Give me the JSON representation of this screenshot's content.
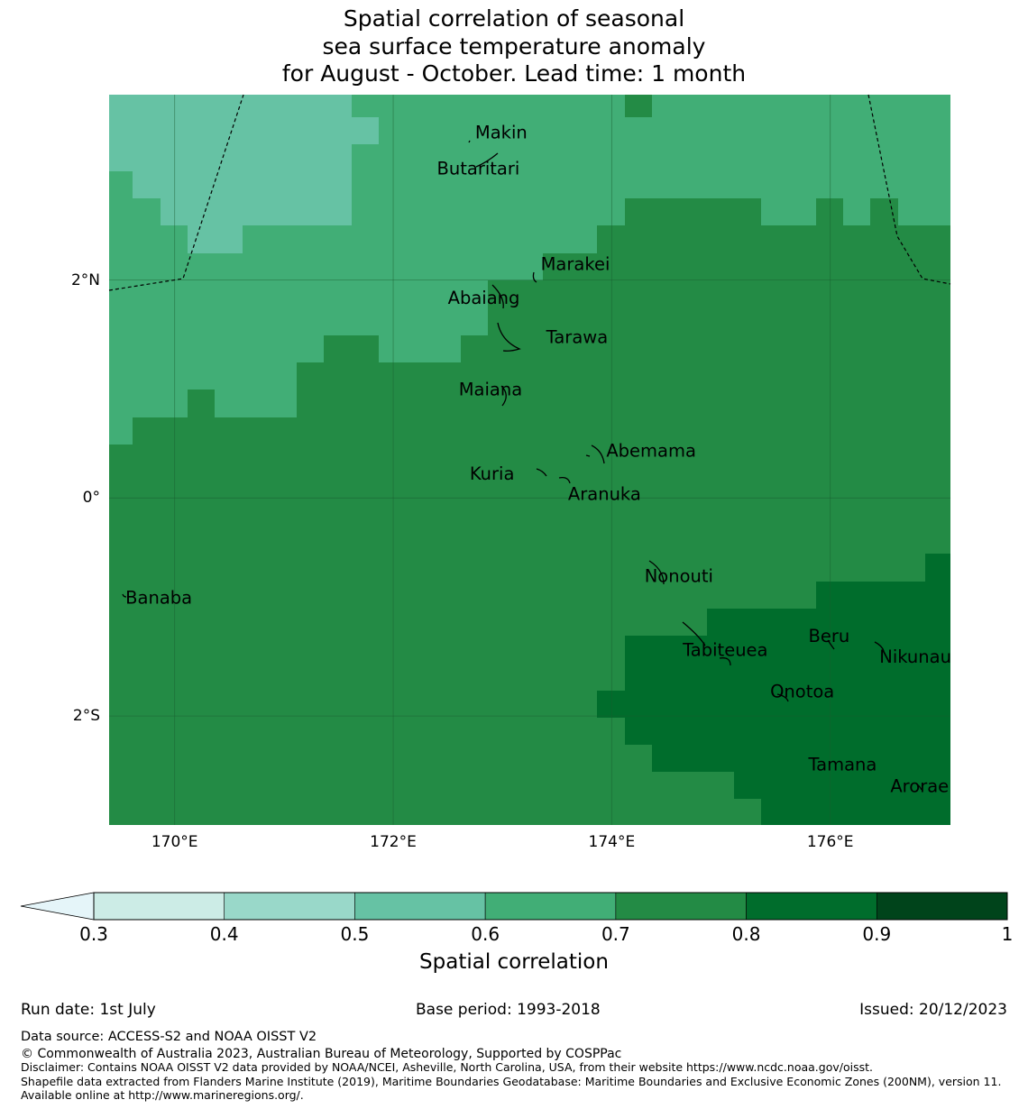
{
  "title_lines": [
    "Spatial correlation of seasonal",
    "sea surface temperature anomaly",
    "for August - October. Lead time: 1 month"
  ],
  "map": {
    "lon_range": [
      169.4,
      177.1
    ],
    "lat_range": [
      -3.0,
      3.7
    ],
    "x_ticks": [
      {
        "value": 170,
        "label": "170°E"
      },
      {
        "value": 172,
        "label": "172°E"
      },
      {
        "value": 174,
        "label": "174°E"
      },
      {
        "value": 176,
        "label": "176°E"
      }
    ],
    "y_ticks": [
      {
        "value": 2,
        "label": "2°N"
      },
      {
        "value": 0,
        "label": "0°"
      },
      {
        "value": -2,
        "label": "2°S"
      }
    ],
    "places": [
      {
        "name": "Makin",
        "lon": 172.75,
        "lat": 3.3
      },
      {
        "name": "Butaritari",
        "lon": 172.4,
        "lat": 2.97
      },
      {
        "name": "Marakei",
        "lon": 173.35,
        "lat": 2.09
      },
      {
        "name": "Abaiang",
        "lon": 172.5,
        "lat": 1.78
      },
      {
        "name": "Tarawa",
        "lon": 173.4,
        "lat": 1.42
      },
      {
        "name": "Maiana",
        "lon": 172.6,
        "lat": 0.94
      },
      {
        "name": "Abemama",
        "lon": 173.95,
        "lat": 0.38
      },
      {
        "name": "Kuria",
        "lon": 172.7,
        "lat": 0.17
      },
      {
        "name": "Aranuka",
        "lon": 173.6,
        "lat": -0.02
      },
      {
        "name": "Nonouti",
        "lon": 174.3,
        "lat": -0.77
      },
      {
        "name": "Banaba",
        "lon": 169.55,
        "lat": -0.97
      },
      {
        "name": "Beru",
        "lon": 175.8,
        "lat": -1.32
      },
      {
        "name": "Tabiteuea",
        "lon": 174.65,
        "lat": -1.45
      },
      {
        "name": "Nikunau",
        "lon": 176.45,
        "lat": -1.51
      },
      {
        "name": "Onotoa",
        "lon": 175.45,
        "lat": -1.83
      },
      {
        "name": "Tamana",
        "lon": 175.8,
        "lat": -2.5
      },
      {
        "name": "Arorae",
        "lon": 176.55,
        "lat": -2.7
      }
    ]
  },
  "colorbar": {
    "label": "Spatial correlation",
    "ticks": [
      "0.3",
      "0.4",
      "0.5",
      "0.6",
      "0.7",
      "0.8",
      "0.9",
      "1"
    ],
    "under_color": "#e5f5f9",
    "colors": [
      "#ccece6",
      "#99d8c9",
      "#66c2a4",
      "#41ae76",
      "#238b45",
      "#006d2c",
      "#00441b"
    ]
  },
  "footer": {
    "run_date": "Run date: 1st July",
    "base_period": "Base period: 1993-2018",
    "issued": "Issued: 20/12/2023",
    "data_source": "Data source: ACCESS-S2 and NOAA OISST V2",
    "copyright": "© Commonwealth of Australia 2023, Australian Bureau of Meteorology, Supported by COSPPac",
    "disclaimer": "Disclaimer: Contains NOAA OISST V2 data provided by NOAA/NCEI, Asheville, North Carolina, USA, from their website https://www.ncdc.noaa.gov/oisst.",
    "shapefile": "Shapefile data extracted from Flanders Marine Institute (2019), Maritime Boundaries Geodatabase: Maritime Boundaries and Exclusive Economic Zones (200NM), version 11. Available online at http://www.marineregions.org/."
  }
}
